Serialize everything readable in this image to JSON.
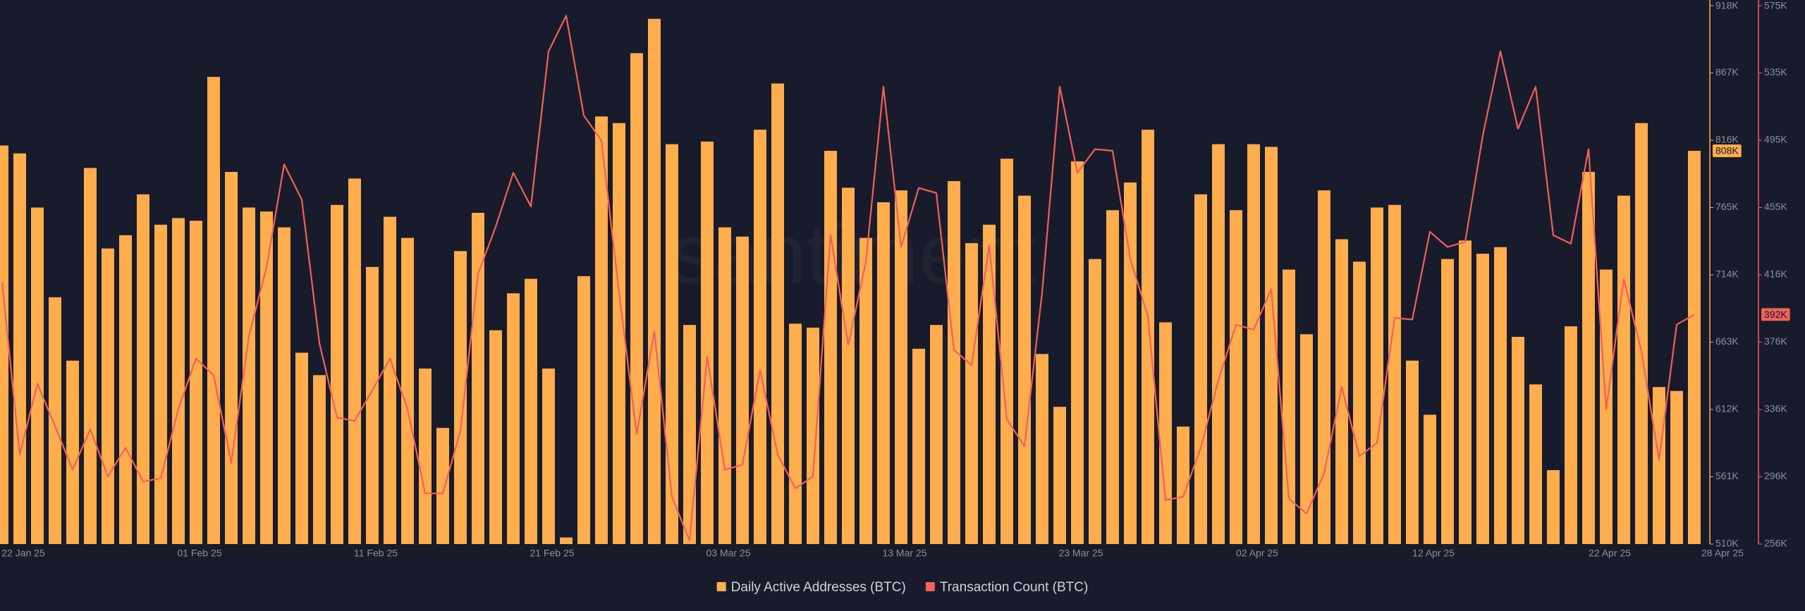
{
  "chart_data": {
    "type": "combo",
    "watermark": "santiment",
    "categories": [
      "22 Jan 25",
      null,
      null,
      null,
      null,
      null,
      null,
      null,
      null,
      null,
      "01 Feb 25",
      null,
      null,
      null,
      null,
      null,
      null,
      null,
      null,
      null,
      "11 Feb 25",
      null,
      null,
      null,
      null,
      null,
      null,
      null,
      null,
      null,
      "21 Feb 25",
      null,
      null,
      null,
      null,
      null,
      null,
      null,
      null,
      null,
      "03 Mar 25",
      null,
      null,
      null,
      null,
      null,
      null,
      null,
      null,
      null,
      "13 Mar 25",
      null,
      null,
      null,
      null,
      null,
      null,
      null,
      null,
      null,
      "23 Mar 25",
      null,
      null,
      null,
      null,
      null,
      null,
      null,
      null,
      null,
      "02 Apr 25",
      null,
      null,
      null,
      null,
      null,
      null,
      null,
      null,
      null,
      "12 Apr 25",
      null,
      null,
      null,
      null,
      null,
      null,
      null,
      null,
      null,
      "22 Apr 25",
      null,
      null,
      null,
      null,
      null,
      "28 Apr 25"
    ],
    "series": [
      {
        "name": "Daily Active Addresses (BTC)",
        "type": "bar",
        "color": "#ffad4d",
        "current_label": "808K",
        "values": [
          812000,
          806000,
          765000,
          697000,
          649000,
          795000,
          734000,
          744000,
          775000,
          752000,
          757000,
          755000,
          864000,
          792000,
          765000,
          762000,
          750000,
          655000,
          638000,
          767000,
          787000,
          720000,
          758000,
          742000,
          643000,
          598000,
          732000,
          761000,
          672000,
          700000,
          711000,
          643000,
          515000,
          713000,
          834000,
          829000,
          882000,
          908000,
          813000,
          676000,
          815000,
          750000,
          743000,
          824000,
          859000,
          677000,
          674000,
          808000,
          780000,
          742000,
          769000,
          778000,
          658000,
          676000,
          785000,
          738000,
          752000,
          802000,
          774000,
          654000,
          614000,
          800000,
          726000,
          763000,
          784000,
          824000,
          678000,
          599000,
          775000,
          813000,
          763000,
          813000,
          811000,
          718000,
          669000,
          778000,
          741000,
          724000,
          765000,
          767000,
          649000,
          608000,
          726000,
          740000,
          730000,
          735000,
          667000,
          631000,
          566000,
          675000,
          792000,
          718000,
          774000,
          829000,
          629000,
          626000,
          808000
        ]
      },
      {
        "name": "Transaction Count (BTC)",
        "type": "line",
        "axis": "y2",
        "color": "#f2605a",
        "current_label": "392K",
        "values": [
          411000,
          309000,
          351000,
          326000,
          300000,
          324000,
          296000,
          313000,
          293000,
          295000,
          336000,
          366000,
          356000,
          304000,
          379000,
          420000,
          481000,
          460000,
          375000,
          331000,
          329000,
          347000,
          366000,
          336000,
          286000,
          286000,
          323000,
          416000,
          444000,
          476000,
          456000,
          548000,
          569000,
          510000,
          495000,
          405000,
          321000,
          382000,
          284000,
          258000,
          367000,
          300000,
          303000,
          359000,
          309000,
          289000,
          296000,
          439000,
          374000,
          423000,
          527000,
          432000,
          467000,
          464000,
          371000,
          362000,
          433000,
          330000,
          314000,
          405000,
          527000,
          476000,
          490000,
          489000,
          425000,
          391000,
          282000,
          284000,
          313000,
          353000,
          386000,
          383000,
          407000,
          283000,
          274000,
          298000,
          349000,
          308000,
          316000,
          390000,
          389000,
          441000,
          432000,
          435000,
          498000,
          548000,
          502000,
          527000,
          439000,
          434000,
          490000,
          336000,
          413000,
          370000,
          306000,
          386000,
          392000
        ]
      }
    ],
    "ylim": [
      510000,
      918000
    ],
    "yticks": [
      {
        "value": 510000,
        "label": "510K"
      },
      {
        "value": 561000,
        "label": "561K"
      },
      {
        "value": 612000,
        "label": "612K"
      },
      {
        "value": 663000,
        "label": "663K"
      },
      {
        "value": 714000,
        "label": "714K"
      },
      {
        "value": 765000,
        "label": "765K"
      },
      {
        "value": 816000,
        "label": "816K"
      },
      {
        "value": 867000,
        "label": "867K"
      },
      {
        "value": 918000,
        "label": "918K"
      }
    ],
    "y2lim": [
      256000,
      575000
    ],
    "y2ticks": [
      {
        "value": 256000,
        "label": "256K"
      },
      {
        "value": 295875,
        "label": "296K"
      },
      {
        "value": 335750,
        "label": "336K"
      },
      {
        "value": 375625,
        "label": "376K"
      },
      {
        "value": 415500,
        "label": "416K"
      },
      {
        "value": 455375,
        "label": "455K"
      },
      {
        "value": 495250,
        "label": "495K"
      },
      {
        "value": 535125,
        "label": "535K"
      },
      {
        "value": 575000,
        "label": "575K"
      }
    ]
  }
}
